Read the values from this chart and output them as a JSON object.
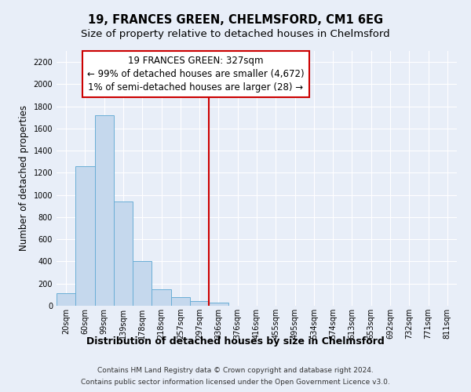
{
  "title": "19, FRANCES GREEN, CHELMSFORD, CM1 6EG",
  "subtitle": "Size of property relative to detached houses in Chelmsford",
  "xlabel": "Distribution of detached houses by size in Chelmsford",
  "ylabel": "Number of detached properties",
  "bin_labels": [
    "20sqm",
    "60sqm",
    "99sqm",
    "139sqm",
    "178sqm",
    "218sqm",
    "257sqm",
    "297sqm",
    "336sqm",
    "376sqm",
    "416sqm",
    "455sqm",
    "495sqm",
    "534sqm",
    "574sqm",
    "613sqm",
    "653sqm",
    "692sqm",
    "732sqm",
    "771sqm",
    "811sqm"
  ],
  "bar_heights": [
    110,
    1260,
    1720,
    940,
    405,
    150,
    75,
    40,
    25,
    0,
    0,
    0,
    0,
    0,
    0,
    0,
    0,
    0,
    0,
    0,
    0
  ],
  "bar_color": "#c5d8ed",
  "bar_edge_color": "#6aaed6",
  "vline_x": 8.0,
  "vline_color": "#cc0000",
  "annotation_line1": "19 FRANCES GREEN: 327sqm",
  "annotation_line2": "← 99% of detached houses are smaller (4,672)",
  "annotation_line3": "1% of semi-detached houses are larger (28) →",
  "annotation_box_color": "#ffffff",
  "annotation_box_edge": "#cc0000",
  "ylim": [
    0,
    2300
  ],
  "yticks": [
    0,
    200,
    400,
    600,
    800,
    1000,
    1200,
    1400,
    1600,
    1800,
    2000,
    2200
  ],
  "bg_color": "#e8eef8",
  "plot_bg_color": "#e8eef8",
  "grid_color": "#ffffff",
  "footer_line1": "Contains HM Land Registry data © Crown copyright and database right 2024.",
  "footer_line2": "Contains public sector information licensed under the Open Government Licence v3.0.",
  "title_fontsize": 10.5,
  "subtitle_fontsize": 9.5,
  "xlabel_fontsize": 9,
  "ylabel_fontsize": 8.5,
  "tick_fontsize": 7,
  "annotation_fontsize": 8.5,
  "footer_fontsize": 6.5
}
